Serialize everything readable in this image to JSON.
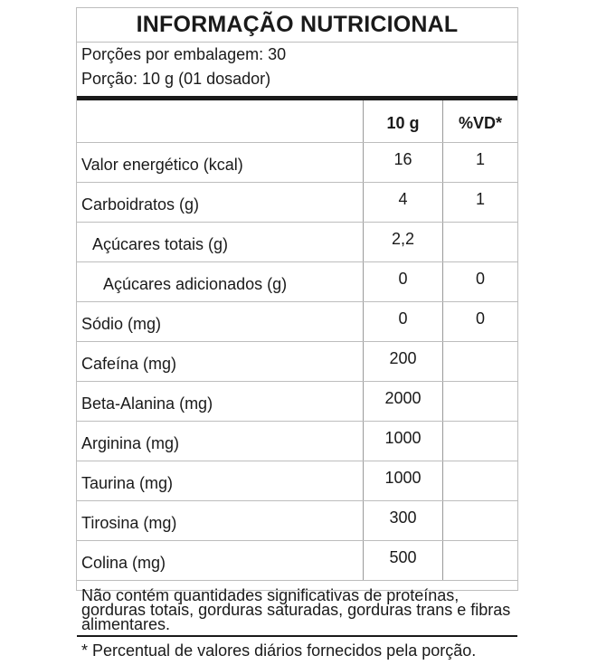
{
  "title": "INFORMAÇÃO NUTRICIONAL",
  "servings_per_package": "Porções por embalagem: 30",
  "serving_size": "Porção: 10 g (01 dosador)",
  "columns": {
    "name": "",
    "amount": "10 g",
    "dv": "%VD*"
  },
  "rows": [
    {
      "name": "Valor energético (kcal)",
      "amount": "16",
      "dv": "1",
      "indent": 0
    },
    {
      "name": "Carboidratos (g)",
      "amount": "4",
      "dv": "1",
      "indent": 0
    },
    {
      "name": "Açúcares totais (g)",
      "amount": "2,2",
      "dv": "",
      "indent": 1
    },
    {
      "name": "Açúcares adicionados (g)",
      "amount": "0",
      "dv": "0",
      "indent": 2
    },
    {
      "name": "Sódio (mg)",
      "amount": "0",
      "dv": "0",
      "indent": 0
    },
    {
      "name": "Cafeína (mg)",
      "amount": "200",
      "dv": "",
      "indent": 0
    },
    {
      "name": "Beta-Alanina (mg)",
      "amount": "2000",
      "dv": "",
      "indent": 0
    },
    {
      "name": "Arginina (mg)",
      "amount": "1000",
      "dv": "",
      "indent": 0
    },
    {
      "name": "Taurina (mg)",
      "amount": "1000",
      "dv": "",
      "indent": 0
    },
    {
      "name": "Tirosina (mg)",
      "amount": "300",
      "dv": "",
      "indent": 0
    },
    {
      "name": "Colina (mg)",
      "amount": "500",
      "dv": "",
      "indent": 0
    }
  ],
  "note": "Não contém quantidades significativas de proteínas, gorduras totais, gorduras saturadas, gorduras trans e fibras alimentares.",
  "footnote": "* Percentual de valores diários fornecidos pela porção."
}
